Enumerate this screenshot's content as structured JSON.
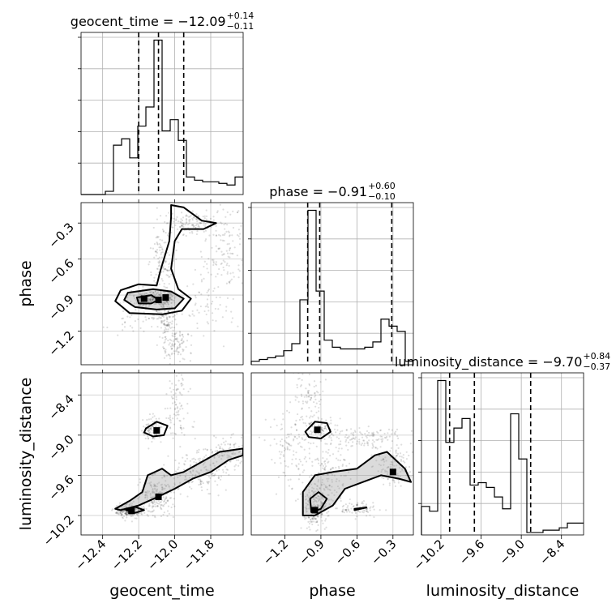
{
  "chart_data": {
    "type": "corner",
    "parameters": [
      "geocent_time",
      "phase",
      "luminosity_distance"
    ],
    "axis_labels": {
      "geocent_time": "geocent_time",
      "phase": "phase",
      "luminosity_distance": "luminosity_distance"
    },
    "titles": {
      "geocent_time": {
        "prefix": "geocent_time = −12.09",
        "sup": "+0.14",
        "sub": "−0.11"
      },
      "phase": {
        "prefix": "phase = −0.91",
        "sup": "+0.60",
        "sub": "−0.10"
      },
      "luminosity_distance": {
        "prefix": "luminosity_distance = −9.70",
        "sup": "+0.84",
        "sub": "−0.37"
      }
    },
    "ranges": {
      "geocent_time": [
        -12.52,
        -11.62
      ],
      "phase": [
        -1.48,
        -0.13
      ],
      "luminosity_distance": [
        -10.49,
        -8.07
      ]
    },
    "ticks": {
      "geocent_time": [
        -12.4,
        -12.2,
        -12.0,
        -11.8
      ],
      "phase": [
        -1.2,
        -0.9,
        -0.6,
        -0.3
      ],
      "luminosity_distance": [
        -10.2,
        -9.6,
        -9.0,
        -8.4
      ]
    },
    "tick_labels": {
      "geocent_time": [
        "−12.4",
        "−12.2",
        "−12.0",
        "−11.8"
      ],
      "phase": [
        "−1.2",
        "−0.9",
        "−0.6",
        "−0.3"
      ],
      "luminosity_distance": [
        "−10.2",
        "−9.6",
        "−9.0",
        "−8.4"
      ]
    },
    "quantiles": {
      "geocent_time": [
        -12.2,
        -12.09,
        -11.95
      ],
      "phase": [
        -1.01,
        -0.91,
        -0.31
      ],
      "luminosity_distance": [
        -10.07,
        -9.7,
        -8.86
      ]
    },
    "histograms": {
      "geocent_time": [
        0,
        0,
        0,
        0.02,
        0.31,
        0.35,
        0.23,
        0.43,
        0.55,
        0.97,
        0.4,
        0.47,
        0.34,
        0.11,
        0.09,
        0.08,
        0.08,
        0.07,
        0.06,
        0.11
      ],
      "phase": [
        0.02,
        0.03,
        0.04,
        0.05,
        0.08,
        0.12,
        0.37,
        0.88,
        0.42,
        0.14,
        0.1,
        0.09,
        0.09,
        0.09,
        0.1,
        0.13,
        0.26,
        0.22,
        0.19,
        0.02
      ],
      "luminosity_distance": [
        0.12,
        0.1,
        0.65,
        0.39,
        0.45,
        0.49,
        0.21,
        0.22,
        0.2,
        0.16,
        0.11,
        0.51,
        0.32,
        0.01,
        0.01,
        0.02,
        0.02,
        0.03,
        0.05,
        0.05
      ]
    },
    "grid": true,
    "contour_color": "#000000"
  }
}
